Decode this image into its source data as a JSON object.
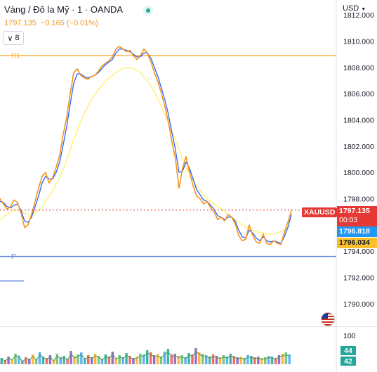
{
  "header": {
    "title": "Vàng / Đô la Mỹ · 1 · OANDA",
    "last_price": "1797.135",
    "change": "−0.165 (−0.01%)",
    "collapse_count": "8",
    "currency": "USD"
  },
  "tags": {
    "symbol": "XAUUSD",
    "price": "1797.135",
    "countdown": "00:03",
    "ma_fast": "1796.818",
    "ma_slow": "1796.034"
  },
  "colors": {
    "price": "#f7931a",
    "ma_fast": "#2962ff",
    "ma_slow": "#fff176",
    "r1": "#f7b347",
    "pivot": "#5b7fd9",
    "last_price_line": "#e53935",
    "tag_red": "#e53935",
    "tag_blue": "#2196f3",
    "tag_yellow": "#fbc02d",
    "volume_badge": "#26a69a"
  },
  "icons": {
    "status": "market-open-dot-icon",
    "collapse": "chevron-down-icon",
    "flag": "us-flag-icon"
  },
  "chart_data": {
    "type": "line",
    "title": "Vàng / Đô la Mỹ · 1 · OANDA",
    "ylim": [
      1788.6,
      1812.6
    ],
    "y_ticks": [
      "1812.000",
      "1810.000",
      "1808.000",
      "1806.000",
      "1804.000",
      "1802.000",
      "1800.000",
      "1798.000",
      "1796.000",
      "1794.000",
      "1792.000",
      "1790.000"
    ],
    "levels": [
      {
        "label": "R1",
        "value": 1808.9
      },
      {
        "label": "P",
        "value": 1793.6
      }
    ],
    "last_price": 1797.135,
    "grid": false,
    "x": [
      0,
      5,
      10,
      15,
      20,
      25,
      30,
      35,
      40,
      45,
      50,
      55,
      60,
      65,
      70,
      75,
      80,
      85,
      90,
      95,
      100,
      105,
      110,
      115,
      120,
      125,
      130,
      135,
      140,
      145,
      150,
      155,
      160,
      165,
      170,
      175,
      180,
      185,
      190,
      195,
      200,
      205,
      210,
      215,
      220,
      225,
      230,
      235,
      240,
      245,
      250,
      255,
      260,
      265,
      270,
      275,
      280,
      285,
      290,
      295,
      300,
      305,
      310,
      315,
      320,
      325,
      330,
      335,
      340,
      345,
      350,
      355,
      360,
      365,
      370,
      375,
      380,
      385,
      390,
      395,
      400,
      405,
      410,
      415
    ],
    "series": [
      {
        "values": [
          1798.0,
          1797.6,
          1797.2,
          1797.4,
          1797.9,
          1797.7,
          1796.9,
          1795.8,
          1796.0,
          1796.8,
          1797.8,
          1798.8,
          1799.7,
          1800.0,
          1799.2,
          1799.6,
          1800.4,
          1801.3,
          1802.9,
          1804.2,
          1806.0,
          1807.6,
          1807.9,
          1807.4,
          1807.2,
          1807.1,
          1807.3,
          1807.4,
          1807.7,
          1808.1,
          1808.3,
          1808.5,
          1808.8,
          1809.4,
          1809.6,
          1809.4,
          1809.2,
          1809.3,
          1808.9,
          1808.6,
          1808.9,
          1809.4,
          1809.1,
          1808.4,
          1807.6,
          1806.9,
          1806.0,
          1805.0,
          1803.8,
          1802.3,
          1801.0,
          1798.8,
          1800.3,
          1801.2,
          1800.0,
          1799.0,
          1798.2,
          1798.0,
          1797.6,
          1797.8,
          1797.3,
          1797.0,
          1796.4,
          1796.6,
          1796.3,
          1796.8,
          1796.6,
          1796.1,
          1795.2,
          1794.8,
          1794.9,
          1796.0,
          1795.2,
          1794.7,
          1794.6,
          1795.3,
          1794.6,
          1794.5,
          1794.8,
          1794.6,
          1794.5,
          1795.4,
          1796.2,
          1797.1
        ]
      },
      {
        "values": [
          1797.8,
          1797.7,
          1797.4,
          1797.3,
          1797.5,
          1797.6,
          1797.1,
          1796.3,
          1796.2,
          1796.6,
          1797.4,
          1798.2,
          1799.2,
          1799.7,
          1799.5,
          1799.5,
          1800.0,
          1800.8,
          1802.1,
          1803.5,
          1805.2,
          1806.8,
          1807.5,
          1807.5,
          1807.3,
          1807.2,
          1807.3,
          1807.4,
          1807.6,
          1807.9,
          1808.2,
          1808.4,
          1808.6,
          1809.1,
          1809.4,
          1809.4,
          1809.3,
          1809.2,
          1809.0,
          1808.8,
          1808.8,
          1809.1,
          1809.1,
          1808.7,
          1808.0,
          1807.3,
          1806.4,
          1805.5,
          1804.4,
          1803.0,
          1801.7,
          1800.0,
          1800.1,
          1800.8,
          1800.3,
          1799.5,
          1798.7,
          1798.3,
          1797.9,
          1797.8,
          1797.5,
          1797.2,
          1796.7,
          1796.6,
          1796.4,
          1796.6,
          1796.6,
          1796.3,
          1795.6,
          1795.1,
          1795.0,
          1795.6,
          1795.4,
          1795.0,
          1794.8,
          1795.1,
          1794.8,
          1794.7,
          1794.8,
          1794.7,
          1794.6,
          1795.1,
          1795.8,
          1796.8
        ]
      },
      {
        "values": [
          1796.4,
          1796.6,
          1796.8,
          1797.0,
          1797.1,
          1797.2,
          1797.1,
          1796.9,
          1796.8,
          1796.8,
          1796.9,
          1797.1,
          1797.4,
          1797.8,
          1798.2,
          1798.6,
          1799.1,
          1799.6,
          1800.2,
          1800.9,
          1801.7,
          1802.5,
          1803.2,
          1803.9,
          1804.5,
          1805.0,
          1805.5,
          1805.9,
          1806.3,
          1806.6,
          1806.9,
          1807.2,
          1807.4,
          1807.6,
          1807.8,
          1807.9,
          1808.0,
          1808.0,
          1807.9,
          1807.8,
          1807.6,
          1807.3,
          1807.0,
          1806.6,
          1806.1,
          1805.6,
          1805.0,
          1804.4,
          1803.8,
          1803.1,
          1802.4,
          1801.7,
          1801.0,
          1800.4,
          1799.9,
          1799.4,
          1799.0,
          1798.6,
          1798.3,
          1798.0,
          1797.8,
          1797.6,
          1797.4,
          1797.2,
          1797.0,
          1796.8,
          1796.6,
          1796.4,
          1796.2,
          1796.0,
          1795.8,
          1795.7,
          1795.6,
          1795.5,
          1795.4,
          1795.4,
          1795.3,
          1795.3,
          1795.3,
          1795.4,
          1795.5,
          1795.6,
          1795.8,
          1796.0
        ]
      }
    ],
    "volume_scale": {
      "labels": [
        "100"
      ],
      "ylim": [
        0,
        100
      ]
    },
    "volume_values": [
      44,
      42
    ],
    "volume": [
      18,
      12,
      22,
      15,
      30,
      25,
      10,
      20,
      16,
      28,
      14,
      35,
      22,
      18,
      26,
      12,
      30,
      20,
      24,
      16,
      38,
      22,
      28,
      34,
      18,
      26,
      20,
      30,
      24,
      16,
      28,
      22,
      36,
      18,
      26,
      20,
      32,
      24,
      18,
      22,
      30,
      28,
      40,
      34,
      26,
      30,
      22,
      36,
      44,
      28,
      30,
      24,
      26,
      20,
      32,
      28,
      46,
      34,
      30,
      26,
      22,
      28,
      24,
      20,
      26,
      22,
      30,
      24,
      20,
      22,
      18,
      26,
      24,
      20,
      22,
      18,
      20,
      24,
      22,
      18,
      26,
      30,
      34,
      28
    ]
  }
}
